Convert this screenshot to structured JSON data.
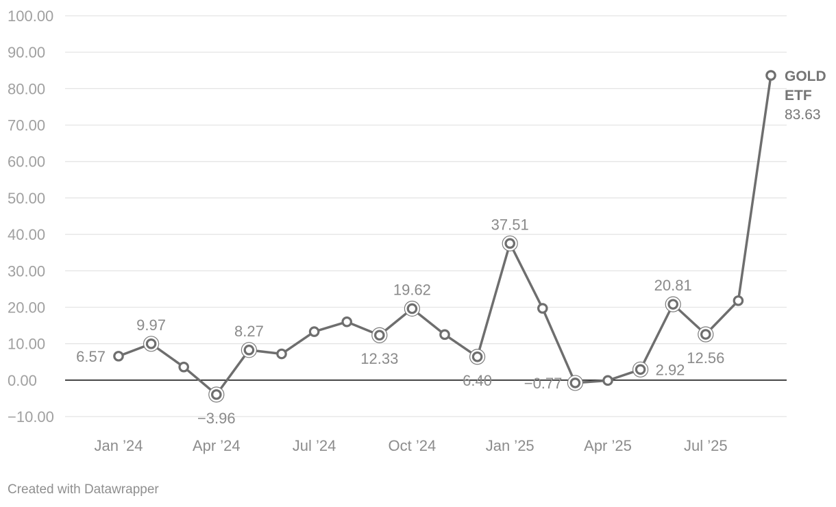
{
  "chart_data": {
    "type": "line",
    "title": "",
    "xlabel": "",
    "ylabel": "",
    "ylim": [
      -10,
      100
    ],
    "yticks": [
      "100.00",
      "90.00",
      "80.00",
      "70.00",
      "60.00",
      "50.00",
      "40.00",
      "30.00",
      "20.00",
      "10.00",
      "0.00",
      "−10.00"
    ],
    "ytick_values": [
      100,
      90,
      80,
      70,
      60,
      50,
      40,
      30,
      20,
      10,
      0,
      -10
    ],
    "xticks": [
      "Jan ’24",
      "Apr ’24",
      "Jul ’24",
      "Oct ’24",
      "Jan ’25",
      "Apr ’25",
      "Jul ’25"
    ],
    "xtick_months": [
      "2024-01",
      "2024-04",
      "2024-07",
      "2024-10",
      "2025-01",
      "2025-04",
      "2025-07"
    ],
    "x": [
      "2024-01",
      "2024-02",
      "2024-03",
      "2024-04",
      "2024-05",
      "2024-06",
      "2024-07",
      "2024-08",
      "2024-09",
      "2024-10",
      "2024-11",
      "2024-12",
      "2025-01",
      "2025-02",
      "2025-03",
      "2025-04",
      "2025-05",
      "2025-06",
      "2025-07",
      "2025-08",
      "2025-09"
    ],
    "series": [
      {
        "name": "GOLD ETF",
        "color": "#6e6e6e",
        "values": [
          6.57,
          9.97,
          3.6,
          -3.96,
          8.27,
          7.2,
          13.3,
          16.0,
          12.33,
          19.62,
          12.5,
          6.4,
          37.51,
          19.7,
          -0.77,
          -0.1,
          2.92,
          20.81,
          12.56,
          21.8,
          83.63
        ]
      }
    ],
    "data_labels": [
      {
        "index": 0,
        "text": "6.57",
        "pos": "left"
      },
      {
        "index": 1,
        "text": "9.97",
        "pos": "above"
      },
      {
        "index": 3,
        "text": "−3.96",
        "pos": "below"
      },
      {
        "index": 4,
        "text": "8.27",
        "pos": "above"
      },
      {
        "index": 8,
        "text": "12.33",
        "pos": "below"
      },
      {
        "index": 9,
        "text": "19.62",
        "pos": "above"
      },
      {
        "index": 11,
        "text": "6.40",
        "pos": "below"
      },
      {
        "index": 12,
        "text": "37.51",
        "pos": "above"
      },
      {
        "index": 14,
        "text": "−0.77",
        "pos": "left"
      },
      {
        "index": 16,
        "text": "2.92",
        "pos": "right"
      },
      {
        "index": 17,
        "text": "20.81",
        "pos": "above"
      },
      {
        "index": 18,
        "text": "12.56",
        "pos": "below"
      }
    ],
    "highlighted_indices": [
      1,
      3,
      4,
      8,
      9,
      11,
      12,
      14,
      16,
      17,
      18
    ],
    "end_label": {
      "name_lines": [
        "GOLD",
        "ETF"
      ],
      "value": "83.63"
    },
    "grid": true,
    "zero_line": true,
    "legend": "none"
  },
  "footer": {
    "credit": "Created with Datawrapper"
  }
}
